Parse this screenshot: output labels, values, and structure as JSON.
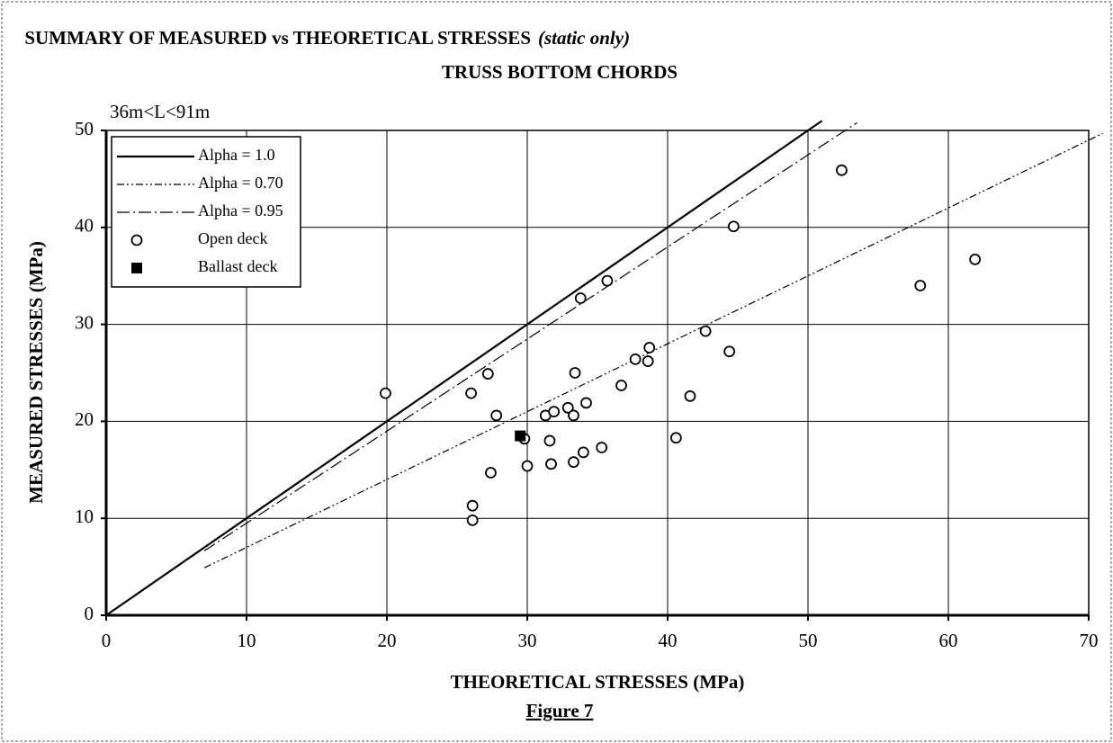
{
  "chart_data": {
    "type": "scatter",
    "title": "SUMMARY OF MEASURED vs THEORETICAL STRESSES",
    "title_note": "(static only)",
    "subtitle": "TRUSS BOTTOM CHORDS",
    "annotation": "36m<L<91m",
    "caption": "Figure 7",
    "x_label": "THEORETICAL STRESSES (MPa)",
    "y_label": "MEASURED STRESSES (MPa)",
    "xlim": [
      0,
      70
    ],
    "ylim": [
      0,
      50
    ],
    "xticks": [
      0,
      10,
      20,
      30,
      40,
      50,
      60,
      70
    ],
    "yticks": [
      0,
      10,
      20,
      30,
      40,
      50
    ],
    "grid": true,
    "legend": "upper left",
    "series": [
      {
        "name": "Alpha = 1.0",
        "color": "#000000",
        "style": "solid",
        "x": [
          0,
          51
        ],
        "values": [
          0,
          51
        ]
      },
      {
        "name": "Alpha = 0.70",
        "color": "#000000",
        "style": "dash-dot-dot",
        "x": [
          7,
          71
        ],
        "values": [
          4.9,
          49.7
        ]
      },
      {
        "name": "Alpha = 0.95",
        "color": "#000000",
        "style": "dash-dot",
        "x": [
          7,
          53.5
        ],
        "values": [
          6.65,
          50.8
        ]
      },
      {
        "name": "Open deck",
        "color": "#000000",
        "marker": "circle",
        "x": [
          19.9,
          26,
          27.2,
          27.8,
          27.4,
          26.1,
          26.1,
          29.8,
          30.0,
          31.3,
          31.9,
          31.6,
          31.7,
          32.9,
          33.3,
          33.4,
          33.8,
          34.2,
          34.0,
          33.3,
          35.3,
          35.7,
          36.7,
          37.7,
          38.6,
          38.7,
          40.6,
          41.6,
          42.7,
          44.4,
          44.7,
          52.4,
          58.0,
          61.9
        ],
        "values": [
          22.9,
          22.9,
          24.9,
          20.6,
          14.7,
          11.3,
          9.8,
          18.2,
          15.4,
          20.6,
          21.0,
          18.0,
          15.6,
          21.4,
          20.6,
          25.0,
          32.7,
          21.9,
          16.8,
          15.8,
          17.3,
          34.5,
          23.7,
          26.4,
          26.2,
          27.6,
          18.3,
          22.6,
          29.3,
          27.2,
          40.1,
          45.9,
          34.0,
          36.7
        ]
      },
      {
        "name": "Ballast deck",
        "color": "#000000",
        "marker": "square",
        "x": [
          29.5
        ],
        "values": [
          18.5
        ]
      }
    ]
  }
}
